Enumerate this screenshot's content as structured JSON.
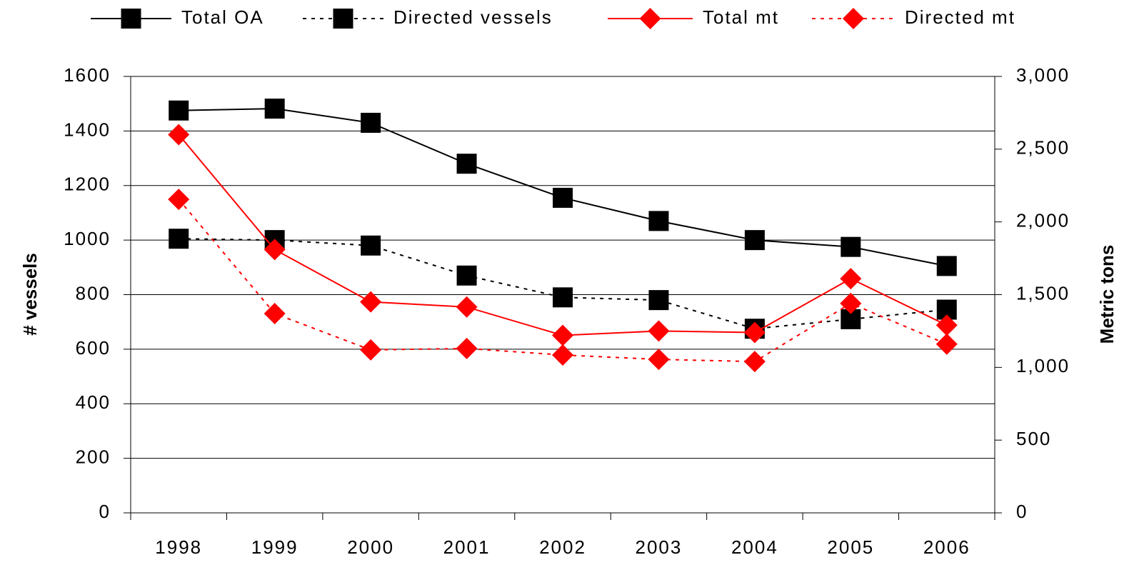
{
  "chart_data": {
    "type": "line",
    "categories": [
      "1998",
      "1999",
      "2000",
      "2001",
      "2002",
      "2003",
      "2004",
      "2005",
      "2006"
    ],
    "series": [
      {
        "name": "Total OA",
        "color": "#000000",
        "line_style": "solid",
        "marker": "square",
        "axis": "y",
        "values": [
          1475,
          1482,
          1430,
          1280,
          1155,
          1070,
          1000,
          975,
          905
        ]
      },
      {
        "name": "Directed vessels",
        "color": "#000000",
        "line_style": "dotted",
        "marker": "square",
        "axis": "y",
        "values": [
          1005,
          1000,
          980,
          870,
          790,
          780,
          675,
          710,
          745
        ]
      },
      {
        "name": "Total mt",
        "color": "#ff0000",
        "line_style": "solid",
        "marker": "diamond",
        "axis": "y2",
        "values": [
          2600,
          1810,
          1450,
          1415,
          1220,
          1250,
          1240,
          1610,
          1290
        ]
      },
      {
        "name": "Directed mt",
        "color": "#ff0000",
        "line_style": "dotted",
        "marker": "diamond",
        "axis": "y2",
        "values": [
          2155,
          1370,
          1120,
          1130,
          1085,
          1055,
          1040,
          1440,
          1160
        ]
      }
    ],
    "ylabel": "# vessels",
    "y2label": "Metric tons",
    "ylim": [
      0,
      1600
    ],
    "yticks": [
      0,
      200,
      400,
      600,
      800,
      1000,
      1200,
      1400,
      1600
    ],
    "y2lim": [
      0,
      3000
    ],
    "y2ticks": [
      0,
      500,
      {
        "value": 1000,
        "label": "1,000"
      },
      {
        "value": 1500,
        "label": "1,500"
      },
      {
        "value": 2000,
        "label": "2,000"
      },
      {
        "value": 2500,
        "label": "2,500"
      },
      {
        "value": 3000,
        "label": "3,000"
      }
    ],
    "grid": true,
    "legend": "top"
  }
}
